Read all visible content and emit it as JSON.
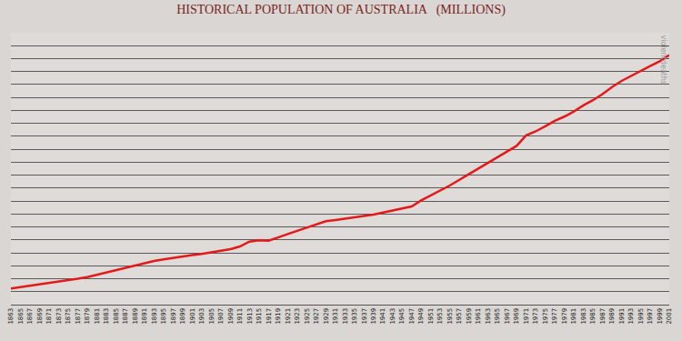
{
  "chart_data": {
    "type": "line",
    "title": "HISTORICAL POPULATION OF AUSTRALIA   (MILLIONS)",
    "annotations": [
      "violentdeaths"
    ],
    "x": [
      1863,
      1865,
      1867,
      1869,
      1871,
      1873,
      1875,
      1877,
      1879,
      1881,
      1883,
      1885,
      1887,
      1889,
      1891,
      1893,
      1895,
      1897,
      1899,
      1901,
      1903,
      1905,
      1907,
      1909,
      1911,
      1913,
      1915,
      1917,
      1919,
      1921,
      1923,
      1925,
      1927,
      1929,
      1931,
      1933,
      1935,
      1937,
      1939,
      1941,
      1943,
      1945,
      1947,
      1949,
      1951,
      1953,
      1955,
      1957,
      1959,
      1961,
      1963,
      1965,
      1967,
      1969,
      1971,
      1973,
      1975,
      1977,
      1979,
      1981,
      1983,
      1985,
      1987,
      1989,
      1991,
      1993,
      1995,
      1997,
      1999,
      2001
    ],
    "values": [
      1.25,
      1.35,
      1.45,
      1.55,
      1.67,
      1.76,
      1.87,
      2.0,
      2.13,
      2.31,
      2.47,
      2.69,
      2.85,
      3.02,
      3.24,
      3.37,
      3.49,
      3.61,
      3.72,
      3.82,
      3.91,
      4.02,
      4.13,
      4.28,
      4.49,
      4.87,
      4.97,
      4.94,
      5.19,
      5.46,
      5.7,
      5.94,
      6.21,
      6.44,
      6.53,
      6.63,
      6.72,
      6.82,
      6.95,
      7.11,
      7.27,
      7.39,
      7.58,
      8.05,
      8.42,
      8.82,
      9.2,
      9.64,
      10.06,
      10.51,
      10.95,
      11.39,
      11.8,
      12.26,
      13.07,
      13.38,
      13.77,
      14.19,
      14.52,
      14.92,
      15.39,
      15.79,
      16.26,
      16.81,
      17.28,
      17.65,
      18.0,
      18.42,
      18.8,
      19.27
    ],
    "color": "#e3191c",
    "xlim": [
      1863,
      2001
    ],
    "xticks": [
      1863,
      1865,
      1867,
      1869,
      1871,
      1873,
      1875,
      1877,
      1879,
      1881,
      1883,
      1885,
      1887,
      1889,
      1891,
      1893,
      1895,
      1897,
      1899,
      1901,
      1903,
      1905,
      1907,
      1909,
      1911,
      1913,
      1915,
      1917,
      1919,
      1921,
      1923,
      1925,
      1927,
      1929,
      1931,
      1933,
      1935,
      1937,
      1939,
      1941,
      1943,
      1945,
      1947,
      1949,
      1951,
      1953,
      1955,
      1957,
      1959,
      1961,
      1963,
      1965,
      1967,
      1969,
      1971,
      1973,
      1975,
      1977,
      1979,
      1981,
      1983,
      1985,
      1987,
      1989,
      1991,
      1993,
      1995,
      1997,
      1999,
      2001
    ],
    "ylim": [
      0,
      21
    ],
    "yticks": [
      0,
      1,
      2,
      3,
      4,
      5,
      6,
      7,
      8,
      9,
      10,
      11,
      12,
      13,
      14,
      15,
      16,
      17,
      18,
      19,
      20,
      21
    ],
    "grid": true,
    "tick_labels": "x"
  }
}
